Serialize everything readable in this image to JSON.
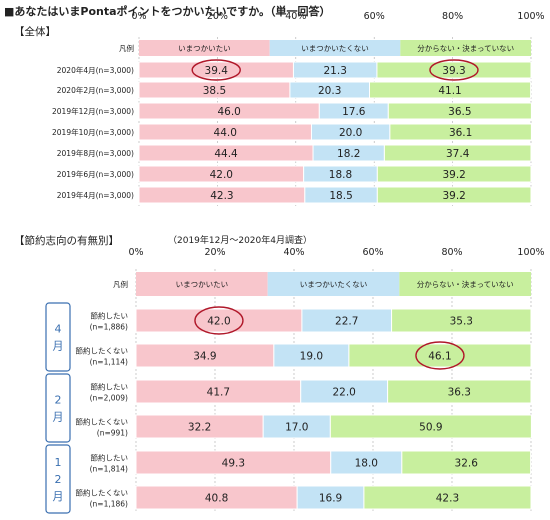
{
  "title": "■あなたはいまPontaポイントをつかいたいですか。（単一回答）",
  "colors": {
    "want": "#f8c6cc",
    "not_want": "#c3e3f5",
    "unsure": "#c8ef9e",
    "highlight_circle": "#b0182a",
    "group_box": "#3a6fb0"
  },
  "chart_data": [
    {
      "type": "stacked-bar-horizontal",
      "section_label": "【全体】",
      "xlim": [
        0,
        100
      ],
      "xticks": [
        "0%",
        "20%",
        "40%",
        "60%",
        "80%",
        "100%"
      ],
      "legend_label": "凡例",
      "legend": [
        "いまつかいたい",
        "いまつかいたくない",
        "分からない・決まっていない"
      ],
      "categories": [
        "2020年4月(n=3,000)",
        "2020年2月(n=3,000)",
        "2019年12月(n=3,000)",
        "2019年10月(n=3,000)",
        "2019年8月(n=3,000)",
        "2019年6月(n=3,000)",
        "2019年4月(n=3,000)"
      ],
      "series": [
        {
          "name": "いまつかいたい",
          "values": [
            39.4,
            38.5,
            46.0,
            44.0,
            44.4,
            42.0,
            42.3
          ]
        },
        {
          "name": "いまつかいたくない",
          "values": [
            21.3,
            20.3,
            17.6,
            20.0,
            18.2,
            18.8,
            18.5
          ]
        },
        {
          "name": "分からない・決まっていない",
          "values": [
            39.3,
            41.1,
            36.5,
            36.1,
            37.4,
            39.2,
            39.2
          ]
        }
      ],
      "highlights": [
        {
          "row": 0,
          "series": 0
        },
        {
          "row": 0,
          "series": 2
        }
      ]
    },
    {
      "type": "stacked-bar-horizontal",
      "section_label": "【節約志向の有無別】",
      "note": "（2019年12月～2020年4月調査）",
      "xlim": [
        0,
        100
      ],
      "xticks": [
        "0%",
        "20%",
        "40%",
        "60%",
        "80%",
        "100%"
      ],
      "legend_label": "凡例",
      "legend": [
        "いまつかいたい",
        "いまつかいたくない",
        "分からない・決まっていない"
      ],
      "groups": [
        "4月",
        "2月",
        "12月"
      ],
      "row_labels": [
        [
          "節約したい",
          "(n=1,886)"
        ],
        [
          "節約したくない",
          "(n=1,114)"
        ],
        [
          "節約したい",
          "(n=2,009)"
        ],
        [
          "節約したくない",
          "(n=991)"
        ],
        [
          "節約したい",
          "(n=1,814)"
        ],
        [
          "節約したくない",
          "(n=1,186)"
        ]
      ],
      "series": [
        {
          "name": "いまつかいたい",
          "values": [
            42.0,
            34.9,
            41.7,
            32.2,
            49.3,
            40.8
          ]
        },
        {
          "name": "いまつかいたくない",
          "values": [
            22.7,
            19.0,
            22.0,
            17.0,
            18.0,
            16.9
          ]
        },
        {
          "name": "分からない・決まっていない",
          "values": [
            35.3,
            46.1,
            36.3,
            50.9,
            32.6,
            42.3
          ]
        }
      ],
      "highlights": [
        {
          "row": 0,
          "series": 0
        },
        {
          "row": 1,
          "series": 2
        }
      ]
    }
  ]
}
